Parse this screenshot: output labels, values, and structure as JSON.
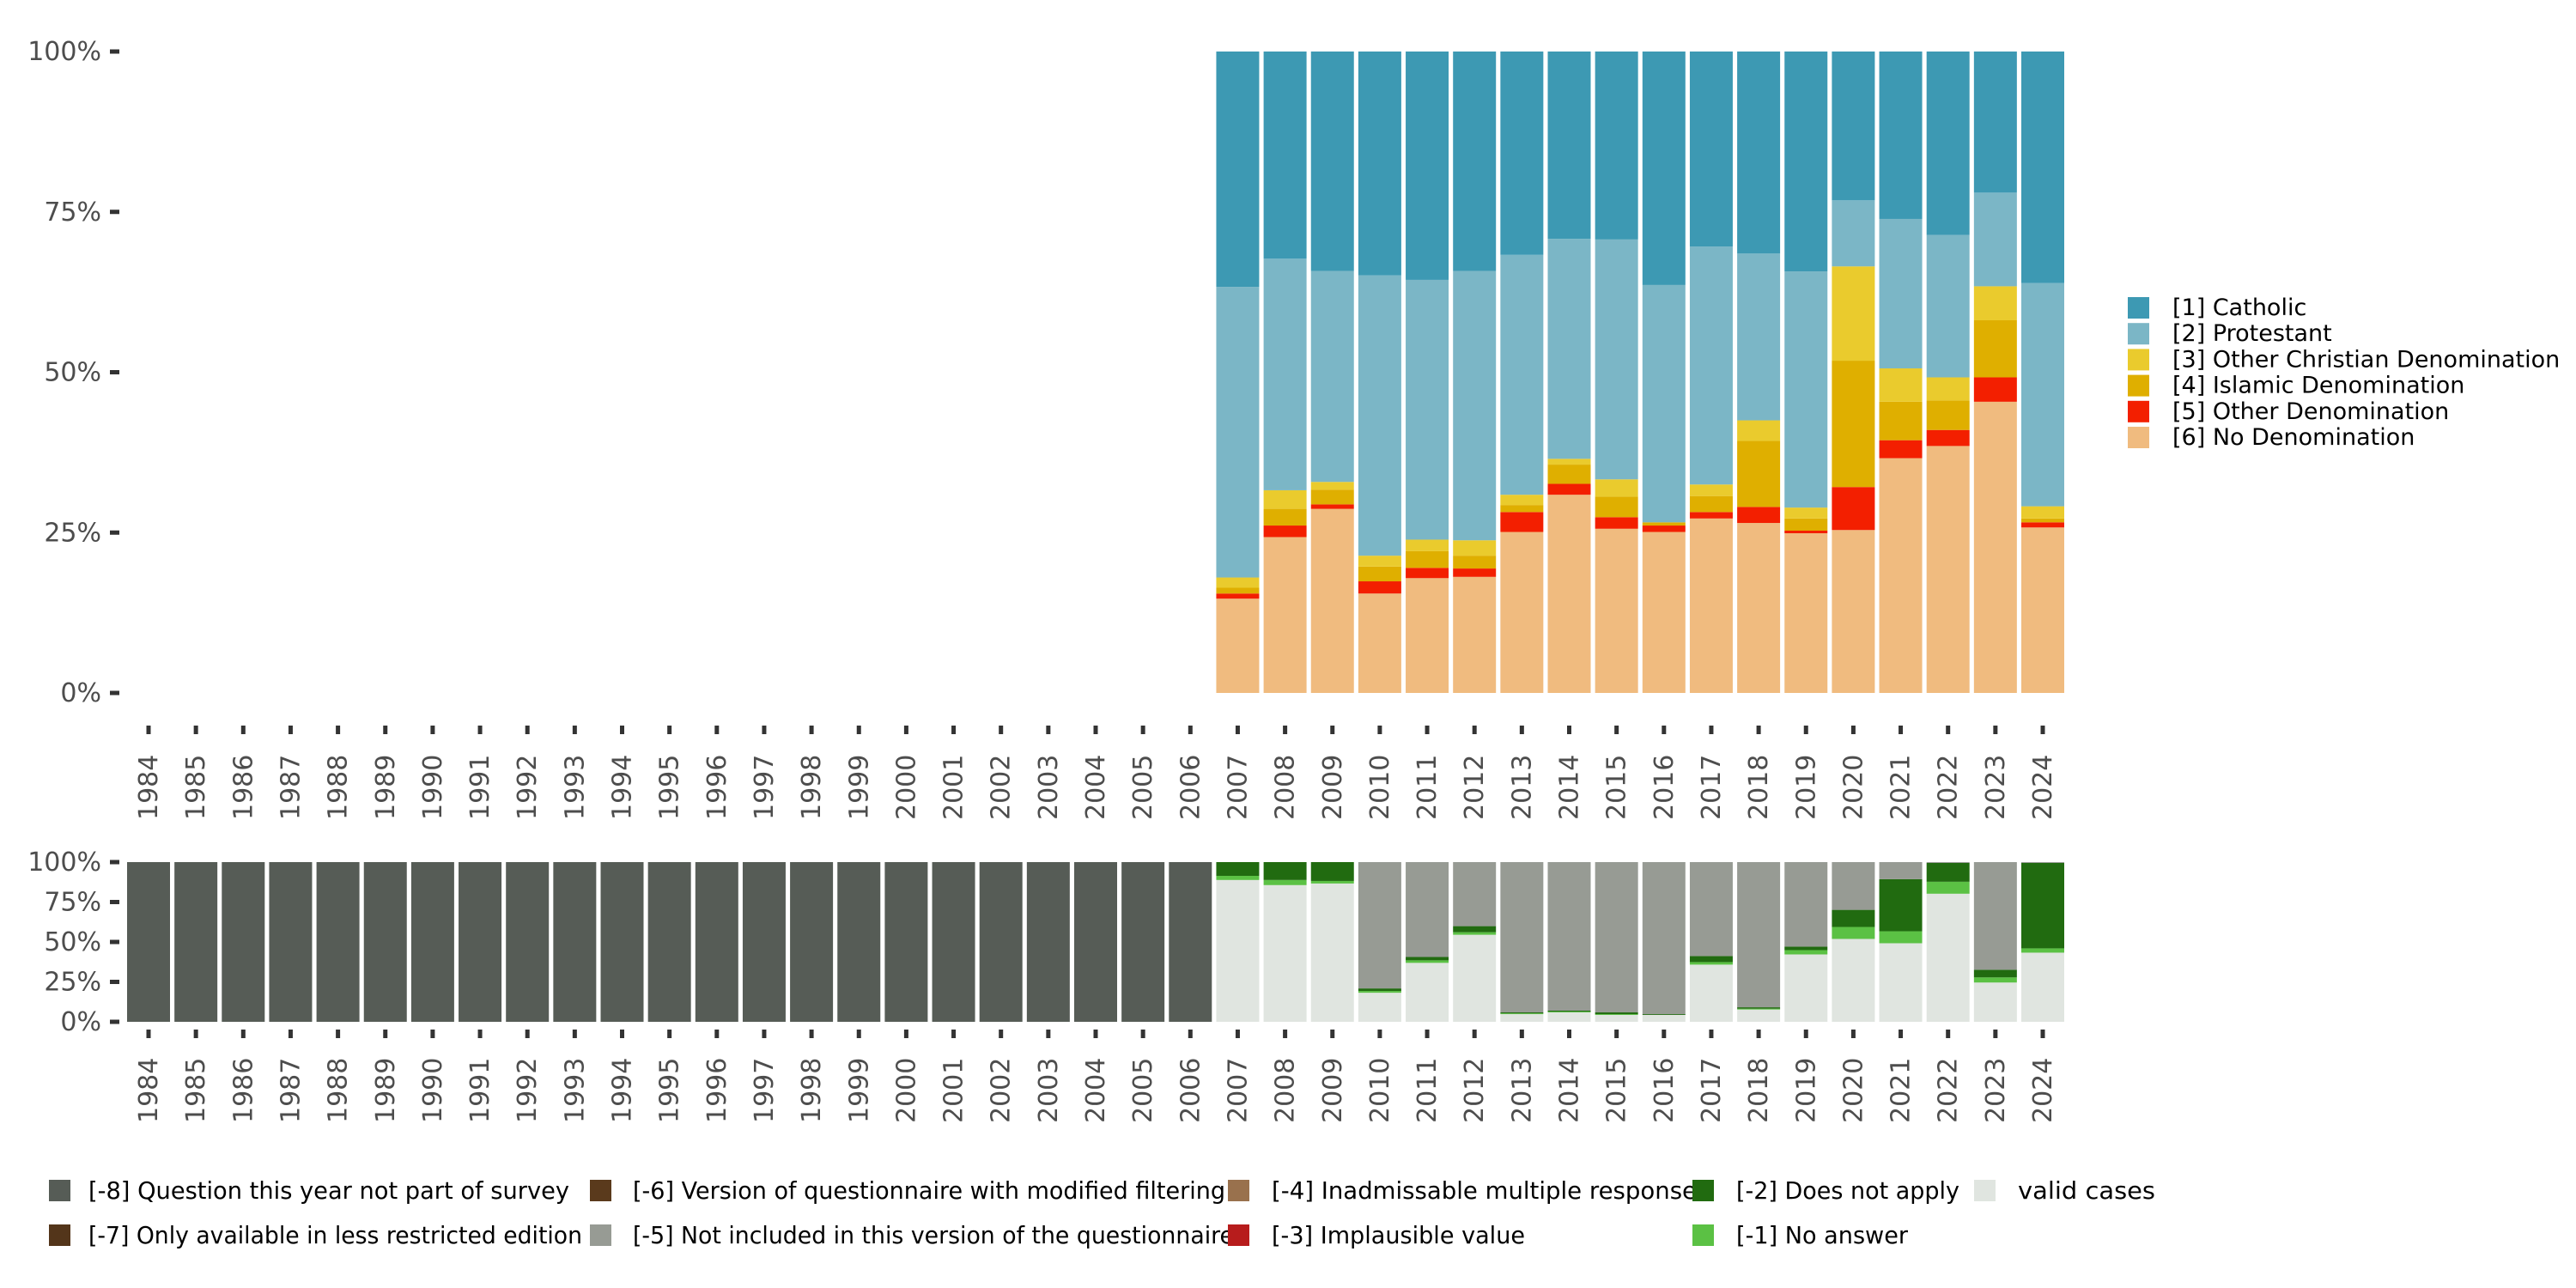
{
  "chart_data": [
    {
      "type": "bar",
      "stacked": "percent",
      "title": "",
      "xlabel": "",
      "ylabel": "",
      "ylim": [
        0,
        100
      ],
      "yticks": [
        "0%",
        "25%",
        "50%",
        "75%",
        "100%"
      ],
      "categories": [
        "1984",
        "1985",
        "1986",
        "1987",
        "1988",
        "1989",
        "1990",
        "1991",
        "1992",
        "1993",
        "1994",
        "1995",
        "1996",
        "1997",
        "1998",
        "1999",
        "2000",
        "2001",
        "2002",
        "2003",
        "2004",
        "2005",
        "2006",
        "2007",
        "2008",
        "2009",
        "2010",
        "2011",
        "2012",
        "2013",
        "2014",
        "2015",
        "2016",
        "2017",
        "2018",
        "2019",
        "2020",
        "2021",
        "2022",
        "2023",
        "2024"
      ],
      "legend_position": "right",
      "series": [
        {
          "name": "[6] No Denomination",
          "color": "#f0bb7f",
          "values": [
            null,
            null,
            null,
            null,
            null,
            null,
            null,
            null,
            null,
            null,
            null,
            null,
            null,
            null,
            null,
            null,
            null,
            null,
            null,
            null,
            null,
            null,
            null,
            14.7,
            24.3,
            28.7,
            15.5,
            17.9,
            18.1,
            25.1,
            30.9,
            25.6,
            25.1,
            27.2,
            26.5,
            24.9,
            25.4,
            36.6,
            38.5,
            45.4,
            25.8
          ]
        },
        {
          "name": "[5] Other Denomination",
          "color": "#f31f00",
          "values": [
            null,
            null,
            null,
            null,
            null,
            null,
            null,
            null,
            null,
            null,
            null,
            null,
            null,
            null,
            null,
            null,
            null,
            null,
            null,
            null,
            null,
            null,
            null,
            0.8,
            1.8,
            0.7,
            1.9,
            1.6,
            1.3,
            3.1,
            1.7,
            1.8,
            1.0,
            1.0,
            2.5,
            0.4,
            6.7,
            2.8,
            2.5,
            3.8,
            0.8
          ]
        },
        {
          "name": "[4] Islamic Denomination",
          "color": "#dfaf00",
          "values": [
            null,
            null,
            null,
            null,
            null,
            null,
            null,
            null,
            null,
            null,
            null,
            null,
            null,
            null,
            null,
            null,
            null,
            null,
            null,
            null,
            null,
            null,
            null,
            0.9,
            2.6,
            2.3,
            2.3,
            2.6,
            2.0,
            1.1,
            3.0,
            3.2,
            0.5,
            2.5,
            10.3,
            1.9,
            19.7,
            6.0,
            4.6,
            8.9,
            0.6
          ]
        },
        {
          "name": "[3] Other Christian Denomination",
          "color": "#eacb2d",
          "values": [
            null,
            null,
            null,
            null,
            null,
            null,
            null,
            null,
            null,
            null,
            null,
            null,
            null,
            null,
            null,
            null,
            null,
            null,
            null,
            null,
            null,
            null,
            null,
            1.6,
            2.9,
            1.2,
            1.7,
            1.8,
            2.4,
            1.6,
            0.9,
            2.7,
            0.0,
            1.8,
            3.2,
            1.7,
            14.7,
            5.2,
            3.6,
            5.3,
            1.9
          ]
        },
        {
          "name": "[2] Protestant",
          "color": "#7bb6c6",
          "values": [
            null,
            null,
            null,
            null,
            null,
            null,
            null,
            null,
            null,
            null,
            null,
            null,
            null,
            null,
            null,
            null,
            null,
            null,
            null,
            null,
            null,
            null,
            null,
            45.3,
            36.1,
            32.9,
            43.7,
            40.5,
            42.0,
            37.4,
            34.3,
            37.4,
            37.0,
            37.1,
            26.0,
            36.8,
            10.3,
            23.3,
            22.2,
            14.6,
            34.8
          ]
        },
        {
          "name": "[1] Catholic",
          "color": "#3d99b3",
          "values": [
            null,
            null,
            null,
            null,
            null,
            null,
            null,
            null,
            null,
            null,
            null,
            null,
            null,
            null,
            null,
            null,
            null,
            null,
            null,
            null,
            null,
            null,
            null,
            36.7,
            32.3,
            34.2,
            34.9,
            35.6,
            34.2,
            31.7,
            29.2,
            29.3,
            36.4,
            30.4,
            31.5,
            34.3,
            23.2,
            26.1,
            28.6,
            22.0,
            36.1
          ]
        }
      ]
    },
    {
      "type": "bar",
      "stacked": "percent",
      "title": "",
      "xlabel": "",
      "ylabel": "",
      "ylim": [
        0,
        100
      ],
      "yticks": [
        "0%",
        "25%",
        "50%",
        "75%",
        "100%"
      ],
      "categories": [
        "1984",
        "1985",
        "1986",
        "1987",
        "1988",
        "1989",
        "1990",
        "1991",
        "1992",
        "1993",
        "1994",
        "1995",
        "1996",
        "1997",
        "1998",
        "1999",
        "2000",
        "2001",
        "2002",
        "2003",
        "2004",
        "2005",
        "2006",
        "2007",
        "2008",
        "2009",
        "2010",
        "2011",
        "2012",
        "2013",
        "2014",
        "2015",
        "2016",
        "2017",
        "2018",
        "2019",
        "2020",
        "2021",
        "2022",
        "2023",
        "2024"
      ],
      "legend_position": "bottom",
      "series": [
        {
          "name": "valid cases",
          "color": "#e0e5e0",
          "values": [
            0,
            0,
            0,
            0,
            0,
            0,
            0,
            0,
            0,
            0,
            0,
            0,
            0,
            0,
            0,
            0,
            0,
            0,
            0,
            0,
            0,
            0,
            0,
            88.8,
            85.6,
            86.6,
            18.2,
            36.9,
            54.5,
            4.8,
            5.9,
            4.3,
            4.3,
            35.8,
            7.7,
            42.2,
            51.9,
            49.2,
            80.2,
            24.6,
            43.3
          ]
        },
        {
          "name": "[-1] No answer",
          "color": "#5bc144",
          "values": [
            0,
            0,
            0,
            0,
            0,
            0,
            0,
            0,
            0,
            0,
            0,
            0,
            0,
            0,
            0,
            0,
            0,
            0,
            0,
            0,
            0,
            0,
            0,
            2.6,
            3.2,
            1.6,
            1.1,
            1.6,
            1.6,
            0.5,
            0.5,
            0.5,
            0.0,
            1.6,
            0.5,
            2.7,
            7.5,
            7.5,
            7.5,
            3.2,
            2.7
          ]
        },
        {
          "name": "[-2] Does not apply",
          "color": "#216b10",
          "values": [
            0,
            0,
            0,
            0,
            0,
            0,
            0,
            0,
            0,
            0,
            0,
            0,
            0,
            0,
            0,
            0,
            0,
            0,
            0,
            0,
            0,
            0,
            0,
            8.6,
            11.2,
            11.8,
            1.6,
            2.1,
            3.8,
            0.6,
            0.6,
            1.1,
            0.5,
            3.8,
            0.9,
            2.2,
            10.7,
            32.6,
            11.8,
            4.8,
            53.5
          ]
        },
        {
          "name": "[-3] Implausible value",
          "color": "#b71c1c",
          "values": [
            0,
            0,
            0,
            0,
            0,
            0,
            0,
            0,
            0,
            0,
            0,
            0,
            0,
            0,
            0,
            0,
            0,
            0,
            0,
            0,
            0,
            0,
            0,
            0,
            0,
            0,
            0,
            0,
            0,
            0,
            0,
            0,
            0,
            0,
            0,
            0,
            0,
            0,
            0,
            0,
            0
          ]
        },
        {
          "name": "[-4] Inadmissable multiple response",
          "color": "#99714d",
          "values": [
            0,
            0,
            0,
            0,
            0,
            0,
            0,
            0,
            0,
            0,
            0,
            0,
            0,
            0,
            0,
            0,
            0,
            0,
            0,
            0,
            0,
            0,
            0,
            0,
            0,
            0,
            0,
            0,
            0,
            0,
            0,
            0,
            0,
            0,
            0,
            0,
            0,
            0,
            0,
            0,
            0
          ]
        },
        {
          "name": "[-5] Not included in this version of the questionnaire",
          "color": "#979b94",
          "values": [
            0,
            0,
            0,
            0,
            0,
            0,
            0,
            0,
            0,
            0,
            0,
            0,
            0,
            0,
            0,
            0,
            0,
            0,
            0,
            0,
            0,
            0,
            0,
            0,
            0,
            0,
            79.1,
            59.4,
            40.1,
            94.1,
            93.0,
            94.1,
            95.2,
            58.8,
            90.9,
            52.9,
            29.9,
            10.7,
            0.5,
            67.4,
            0.5
          ]
        },
        {
          "name": "[-6] Version of questionnaire with modified filtering",
          "color": "#5a3a1c",
          "values": [
            0,
            0,
            0,
            0,
            0,
            0,
            0,
            0,
            0,
            0,
            0,
            0,
            0,
            0,
            0,
            0,
            0,
            0,
            0,
            0,
            0,
            0,
            0,
            0,
            0,
            0,
            0,
            0,
            0,
            0,
            0,
            0,
            0,
            0,
            0,
            0,
            0,
            0,
            0,
            0,
            0
          ]
        },
        {
          "name": "[-7] Only available in less restricted edition",
          "color": "#53351a",
          "values": [
            0,
            0,
            0,
            0,
            0,
            0,
            0,
            0,
            0,
            0,
            0,
            0,
            0,
            0,
            0,
            0,
            0,
            0,
            0,
            0,
            0,
            0,
            0,
            0,
            0,
            0,
            0,
            0,
            0,
            0,
            0,
            0,
            0,
            0,
            0,
            0,
            0,
            0,
            0,
            0,
            0
          ]
        },
        {
          "name": "[-8] Question this year not part of survey",
          "color": "#565c56",
          "values": [
            100,
            100,
            100,
            100,
            100,
            100,
            100,
            100,
            100,
            100,
            100,
            100,
            100,
            100,
            100,
            100,
            100,
            100,
            100,
            100,
            100,
            100,
            100,
            0,
            0,
            0,
            0,
            0,
            0,
            0,
            0,
            0,
            0,
            0,
            0,
            0,
            0,
            0,
            0,
            0,
            0
          ]
        }
      ]
    }
  ],
  "top_legend": {
    "items": [
      {
        "label": "[1] Catholic",
        "color": "#3d99b3"
      },
      {
        "label": "[2] Protestant",
        "color": "#7bb6c6"
      },
      {
        "label": "[3] Other Christian Denomination",
        "color": "#eacb2d"
      },
      {
        "label": "[4] Islamic Denomination",
        "color": "#dfaf00"
      },
      {
        "label": "[5] Other Denomination",
        "color": "#f31f00"
      },
      {
        "label": "[6] No Denomination",
        "color": "#f0bb7f"
      }
    ]
  },
  "bottom_legend": {
    "items": [
      {
        "label": "[-8] Question this year not part of survey",
        "color": "#565c56"
      },
      {
        "label": "[-7] Only available in less restricted edition",
        "color": "#53351a"
      },
      {
        "label": "[-6] Version of questionnaire with modified filtering",
        "color": "#5a3a1c"
      },
      {
        "label": "[-5] Not included in this version of the questionnaire",
        "color": "#979b94"
      },
      {
        "label": "[-4] Inadmissable multiple response",
        "color": "#99714d"
      },
      {
        "label": "[-3] Implausible value",
        "color": "#b71c1c"
      },
      {
        "label": "[-2] Does not apply",
        "color": "#216b10"
      },
      {
        "label": "[-1] No answer",
        "color": "#5bc144"
      },
      {
        "label": "valid cases",
        "color": "#e0e5e0"
      }
    ]
  }
}
